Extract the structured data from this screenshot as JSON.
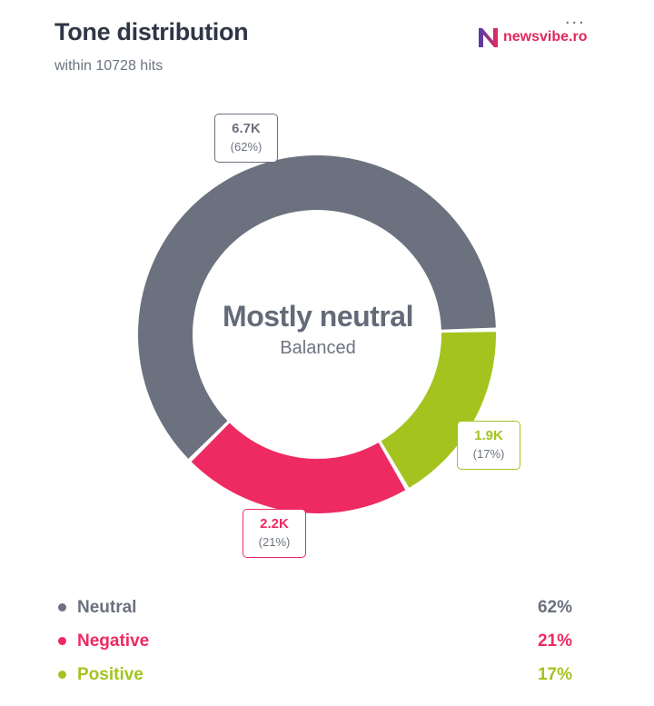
{
  "header": {
    "title": "Tone distribution",
    "subtitle": "within 10728 hits",
    "more_label": "...",
    "brand_text": "newsvibe.ro"
  },
  "center": {
    "title": "Mostly neutral",
    "subtitle": "Balanced"
  },
  "colors": {
    "neutral": "#6b717e",
    "negative": "#ee2a62",
    "positive": "#a4c31f",
    "brand": "#e0285e"
  },
  "chart_data": {
    "type": "pie",
    "variant": "donut",
    "total": 10728,
    "series": [
      {
        "name": "Neutral",
        "value_label": "6.7K",
        "percent_label": "(62%)",
        "percent": 62
      },
      {
        "name": "Negative",
        "value_label": "2.2K",
        "percent_label": "(21%)",
        "percent": 21
      },
      {
        "name": "Positive",
        "value_label": "1.9K",
        "percent_label": "(17%)",
        "percent": 17
      }
    ]
  },
  "legend": [
    {
      "label": "Neutral",
      "pct": "62%"
    },
    {
      "label": "Negative",
      "pct": "21%"
    },
    {
      "label": "Positive",
      "pct": "17%"
    }
  ]
}
